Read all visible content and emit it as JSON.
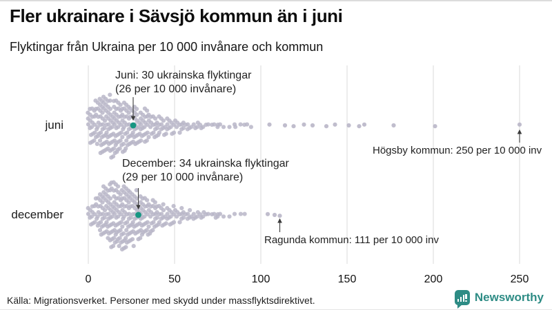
{
  "header": {
    "title": "Fler ukrainare i Sävsjö kommun än i juni",
    "subtitle": "Flyktingar från Ukraina per 10 000 invånare och kommun"
  },
  "footer": {
    "source": "Källa: Migrationsverket. Personer med skydd under massflyktsdirektivet.",
    "brand": "Newsworthy"
  },
  "colors": {
    "dot": "#b9b6c8",
    "highlight": "#179682",
    "brand": "#2e8c85",
    "gridline": "#d8d8d8",
    "arrow": "#3a3a3a"
  },
  "annotations": {
    "juni_highlight": {
      "line1": "Juni: 30 ukrainska flyktingar",
      "line2": "(26 per 10 000 invånare)",
      "target_value": 26,
      "row": "juni"
    },
    "hogsby": {
      "text": "Högsby kommun: 250 per 10 000 inv",
      "target_value": 250,
      "row": "juni"
    },
    "december_highlight": {
      "line1": "December: 34 ukrainska flyktingar",
      "line2": "(29 per 10 000 invånare)",
      "target_value": 29,
      "row": "december"
    },
    "ragunda": {
      "text": "Ragunda kommun: 111 per 10 000 inv",
      "target_value": 111,
      "row": "december"
    }
  },
  "chart_data": {
    "type": "scatter",
    "variant": "beeswarm",
    "title": "Fler ukrainare i Sävsjö kommun än i juni",
    "subtitle": "Flyktingar från Ukraina per 10 000 invånare och kommun",
    "xlabel": "",
    "xlim": [
      0,
      260
    ],
    "x_ticks": [
      0,
      50,
      100,
      150,
      200,
      250
    ],
    "grid": "vertical",
    "rows": [
      {
        "label": "juni",
        "highlight_value": 26,
        "bins": [
          [
            0,
            5,
            24
          ],
          [
            5,
            10,
            36
          ],
          [
            10,
            15,
            40
          ],
          [
            15,
            20,
            34
          ],
          [
            20,
            25,
            29
          ],
          [
            25,
            30,
            25
          ],
          [
            30,
            35,
            21
          ],
          [
            35,
            40,
            16
          ],
          [
            40,
            45,
            12
          ],
          [
            45,
            50,
            10
          ],
          [
            50,
            55,
            8
          ],
          [
            55,
            60,
            6
          ],
          [
            60,
            65,
            5
          ],
          [
            65,
            70,
            4
          ],
          [
            70,
            75,
            3
          ],
          [
            75,
            80,
            3
          ],
          [
            80,
            85,
            2
          ],
          [
            85,
            90,
            2
          ],
          [
            90,
            96,
            3
          ]
        ],
        "outliers": [
          105,
          114,
          119,
          125,
          130,
          138,
          143,
          151,
          157,
          160,
          177,
          201,
          250
        ]
      },
      {
        "label": "december",
        "highlight_value": 29,
        "bins": [
          [
            0,
            5,
            14
          ],
          [
            5,
            10,
            28
          ],
          [
            10,
            15,
            40
          ],
          [
            15,
            20,
            44
          ],
          [
            20,
            25,
            38
          ],
          [
            25,
            30,
            31
          ],
          [
            30,
            35,
            26
          ],
          [
            35,
            40,
            20
          ],
          [
            40,
            45,
            15
          ],
          [
            45,
            50,
            12
          ],
          [
            50,
            55,
            9
          ],
          [
            55,
            60,
            7
          ],
          [
            60,
            65,
            6
          ],
          [
            65,
            70,
            5
          ],
          [
            70,
            75,
            4
          ],
          [
            75,
            80,
            3
          ],
          [
            80,
            85,
            2
          ],
          [
            86,
            89,
            1
          ],
          [
            90,
            92,
            1
          ]
        ],
        "outliers": [
          104,
          108,
          111
        ]
      }
    ]
  }
}
